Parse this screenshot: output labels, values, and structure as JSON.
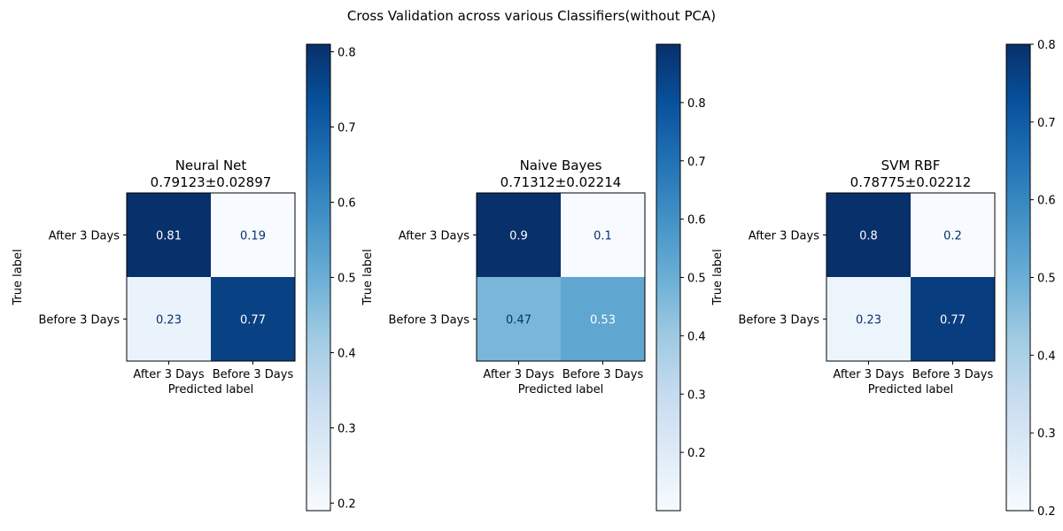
{
  "figure": {
    "suptitle": "Cross Validation across various Classifiers(without PCA)"
  },
  "chart_data": [
    {
      "type": "heatmap",
      "title": "Neural Net",
      "subtitle": "0.79123±0.02897",
      "xlabel": "Predicted label",
      "ylabel": "True label",
      "x_categories": [
        "After 3 Days",
        "Before 3 Days"
      ],
      "y_categories": [
        "After 3 Days",
        "Before 3 Days"
      ],
      "values": [
        [
          0.81,
          0.19
        ],
        [
          0.23,
          0.77
        ]
      ],
      "value_labels": [
        [
          "0.81",
          "0.19"
        ],
        [
          "0.23",
          "0.77"
        ]
      ],
      "colormap": "Blues",
      "colorbar": {
        "range": [
          0.19,
          0.81
        ],
        "ticks": [
          0.2,
          0.3,
          0.4,
          0.5,
          0.6,
          0.7,
          0.8
        ],
        "tick_labels": [
          "0.2",
          "0.3",
          "0.4",
          "0.5",
          "0.6",
          "0.7",
          "0.8"
        ]
      }
    },
    {
      "type": "heatmap",
      "title": "Naive Bayes",
      "subtitle": "0.71312±0.02214",
      "xlabel": "Predicted label",
      "ylabel": "True label",
      "x_categories": [
        "After 3 Days",
        "Before 3 Days"
      ],
      "y_categories": [
        "After 3 Days",
        "Before 3 Days"
      ],
      "values": [
        [
          0.9,
          0.1
        ],
        [
          0.47,
          0.53
        ]
      ],
      "value_labels": [
        [
          "0.9",
          "0.1"
        ],
        [
          "0.47",
          "0.53"
        ]
      ],
      "colormap": "Blues",
      "colorbar": {
        "range": [
          0.1,
          0.9
        ],
        "ticks": [
          0.2,
          0.3,
          0.4,
          0.5,
          0.6,
          0.7,
          0.8
        ],
        "tick_labels": [
          "0.2",
          "0.3",
          "0.4",
          "0.5",
          "0.6",
          "0.7",
          "0.8"
        ]
      }
    },
    {
      "type": "heatmap",
      "title": "SVM RBF",
      "subtitle": "0.78775±0.02212",
      "xlabel": "Predicted label",
      "ylabel": "True label",
      "x_categories": [
        "After 3 Days",
        "Before 3 Days"
      ],
      "y_categories": [
        "After 3 Days",
        "Before 3 Days"
      ],
      "values": [
        [
          0.8,
          0.2
        ],
        [
          0.23,
          0.77
        ]
      ],
      "value_labels": [
        [
          "0.8",
          "0.2"
        ],
        [
          "0.23",
          "0.77"
        ]
      ],
      "colormap": "Blues",
      "colorbar": {
        "range": [
          0.2,
          0.8
        ],
        "ticks": [
          0.2,
          0.3,
          0.4,
          0.5,
          0.6,
          0.7,
          0.8
        ],
        "tick_labels": [
          "0.2",
          "0.3",
          "0.4",
          "0.5",
          "0.6",
          "0.7",
          "0.8"
        ]
      }
    }
  ]
}
